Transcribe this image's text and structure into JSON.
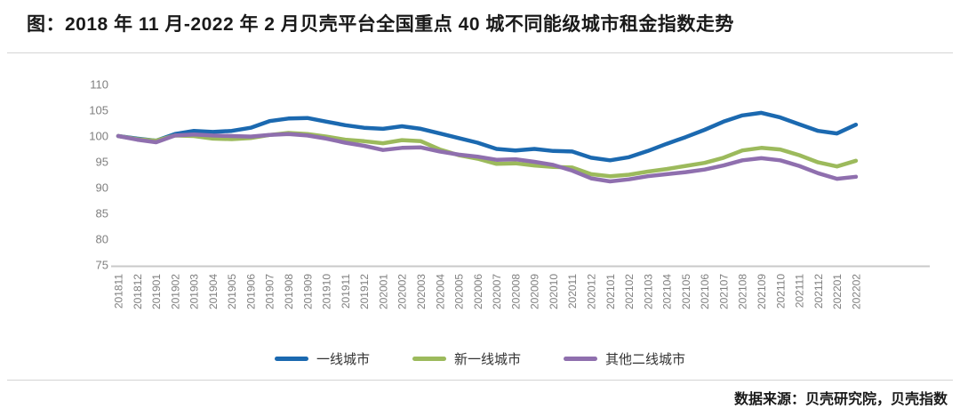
{
  "header": {
    "title": "图：2018 年 11 月-2022 年 2 月贝壳平台全国重点 40 城不同能级城市租金指数走势"
  },
  "footer": {
    "source": "数据来源：贝壳研究院，贝壳指数"
  },
  "colors": {
    "tick_text": "#7f7f7f",
    "axis_line": "#c9c9c9"
  },
  "chart_data": {
    "type": "line",
    "title": "图：2018 年 11 月-2022 年 2 月贝壳平台全国重点 40 城不同能级城市租金指数走势",
    "xlabel": "",
    "ylabel": "",
    "ylim": [
      75,
      110
    ],
    "y_ticks": [
      110,
      105,
      100,
      95,
      90,
      85,
      80,
      75
    ],
    "grid": "none",
    "legend_position": "bottom",
    "categories": [
      "201811",
      "201812",
      "201901",
      "201902",
      "201903",
      "201904",
      "201905",
      "201906",
      "201907",
      "201908",
      "201909",
      "201910",
      "201911",
      "201912",
      "202001",
      "202002",
      "202003",
      "202004",
      "202005",
      "202006",
      "202007",
      "202008",
      "202009",
      "202010",
      "202011",
      "202012",
      "202101",
      "202102",
      "202103",
      "202104",
      "202105",
      "202106",
      "202107",
      "202108",
      "202109",
      "202110",
      "202111",
      "202112",
      "202201",
      "202202"
    ],
    "series": [
      {
        "name": "一线城市",
        "color": "#1b69b0",
        "values": [
          100,
          99.5,
          99.1,
          100.4,
          101,
          100.8,
          101,
          101.6,
          102.9,
          103.4,
          103.5,
          102.8,
          102.1,
          101.6,
          101.4,
          101.9,
          101.4,
          100.5,
          99.6,
          98.7,
          97.5,
          97.2,
          97.5,
          97.1,
          97,
          95.8,
          95.3,
          95.9,
          97.1,
          98.5,
          99.8,
          101.2,
          102.8,
          104,
          104.5,
          103.6,
          102.3,
          101,
          100.5,
          102.2
        ]
      },
      {
        "name": "新一线城市",
        "color": "#9cba5c",
        "values": [
          100,
          99.4,
          99.1,
          100.1,
          100,
          99.5,
          99.4,
          99.6,
          100.2,
          100.6,
          100.4,
          99.9,
          99.3,
          99,
          98.6,
          99.2,
          99,
          97.4,
          96.3,
          95.6,
          94.6,
          94.7,
          94.3,
          94,
          93.9,
          92.6,
          92.2,
          92.5,
          93.1,
          93.6,
          94.2,
          94.8,
          95.8,
          97.2,
          97.7,
          97.4,
          96.3,
          94.9,
          94.1,
          95.2
        ]
      },
      {
        "name": "其他二线城市",
        "color": "#8f6fae",
        "values": [
          100,
          99.3,
          98.8,
          100.1,
          100.3,
          100.1,
          100,
          99.9,
          100.2,
          100.4,
          100.1,
          99.5,
          98.7,
          98.1,
          97.3,
          97.7,
          97.8,
          97,
          96.4,
          96,
          95.4,
          95.5,
          95,
          94.4,
          93.3,
          91.8,
          91.2,
          91.6,
          92.2,
          92.6,
          93,
          93.5,
          94.3,
          95.3,
          95.7,
          95.3,
          94.2,
          92.8,
          91.7,
          92.1
        ]
      }
    ]
  }
}
